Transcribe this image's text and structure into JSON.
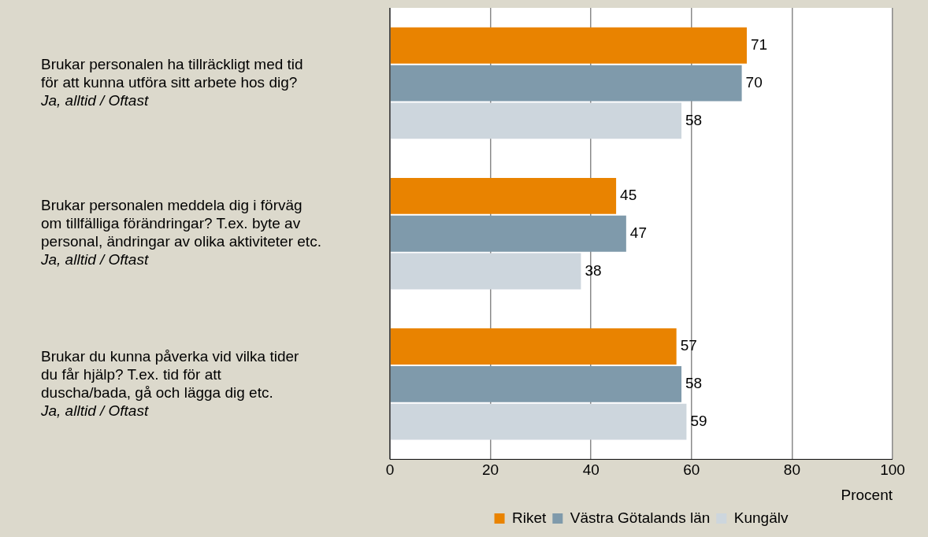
{
  "chart_data": {
    "type": "bar",
    "orientation": "horizontal",
    "xlabel": "Procent",
    "categories": [
      "Brukar personalen ha tillräckligt med tid\nför att kunna utföra sitt arbete hos dig?\nJa, alltid / Oftast",
      "Brukar personalen meddela dig i förväg\nom tillfälliga förändringar? T.ex. byte av\npersonal, ändringar av olika aktiviteter etc.\nJa, alltid / Oftast",
      "Brukar du kunna påverka vid vilka tider\ndu får hjälp? T.ex. tid för att\nduscha/bada, gå och lägga dig etc.\nJa, alltid / Oftast"
    ],
    "series": [
      {
        "name": "Riket",
        "color": "#e98300",
        "values": [
          71,
          45,
          57
        ]
      },
      {
        "name": "Västra Götalands län",
        "color": "#7f9aab",
        "values": [
          70,
          47,
          58
        ]
      },
      {
        "name": "Kungälv",
        "color": "#cdd6dd",
        "values": [
          58,
          38,
          59
        ]
      }
    ],
    "xlim": [
      0,
      100
    ],
    "xticks": [
      0,
      20,
      40,
      60,
      80,
      100
    ],
    "grid": "x",
    "legend": "bottom",
    "data_labels": true
  }
}
